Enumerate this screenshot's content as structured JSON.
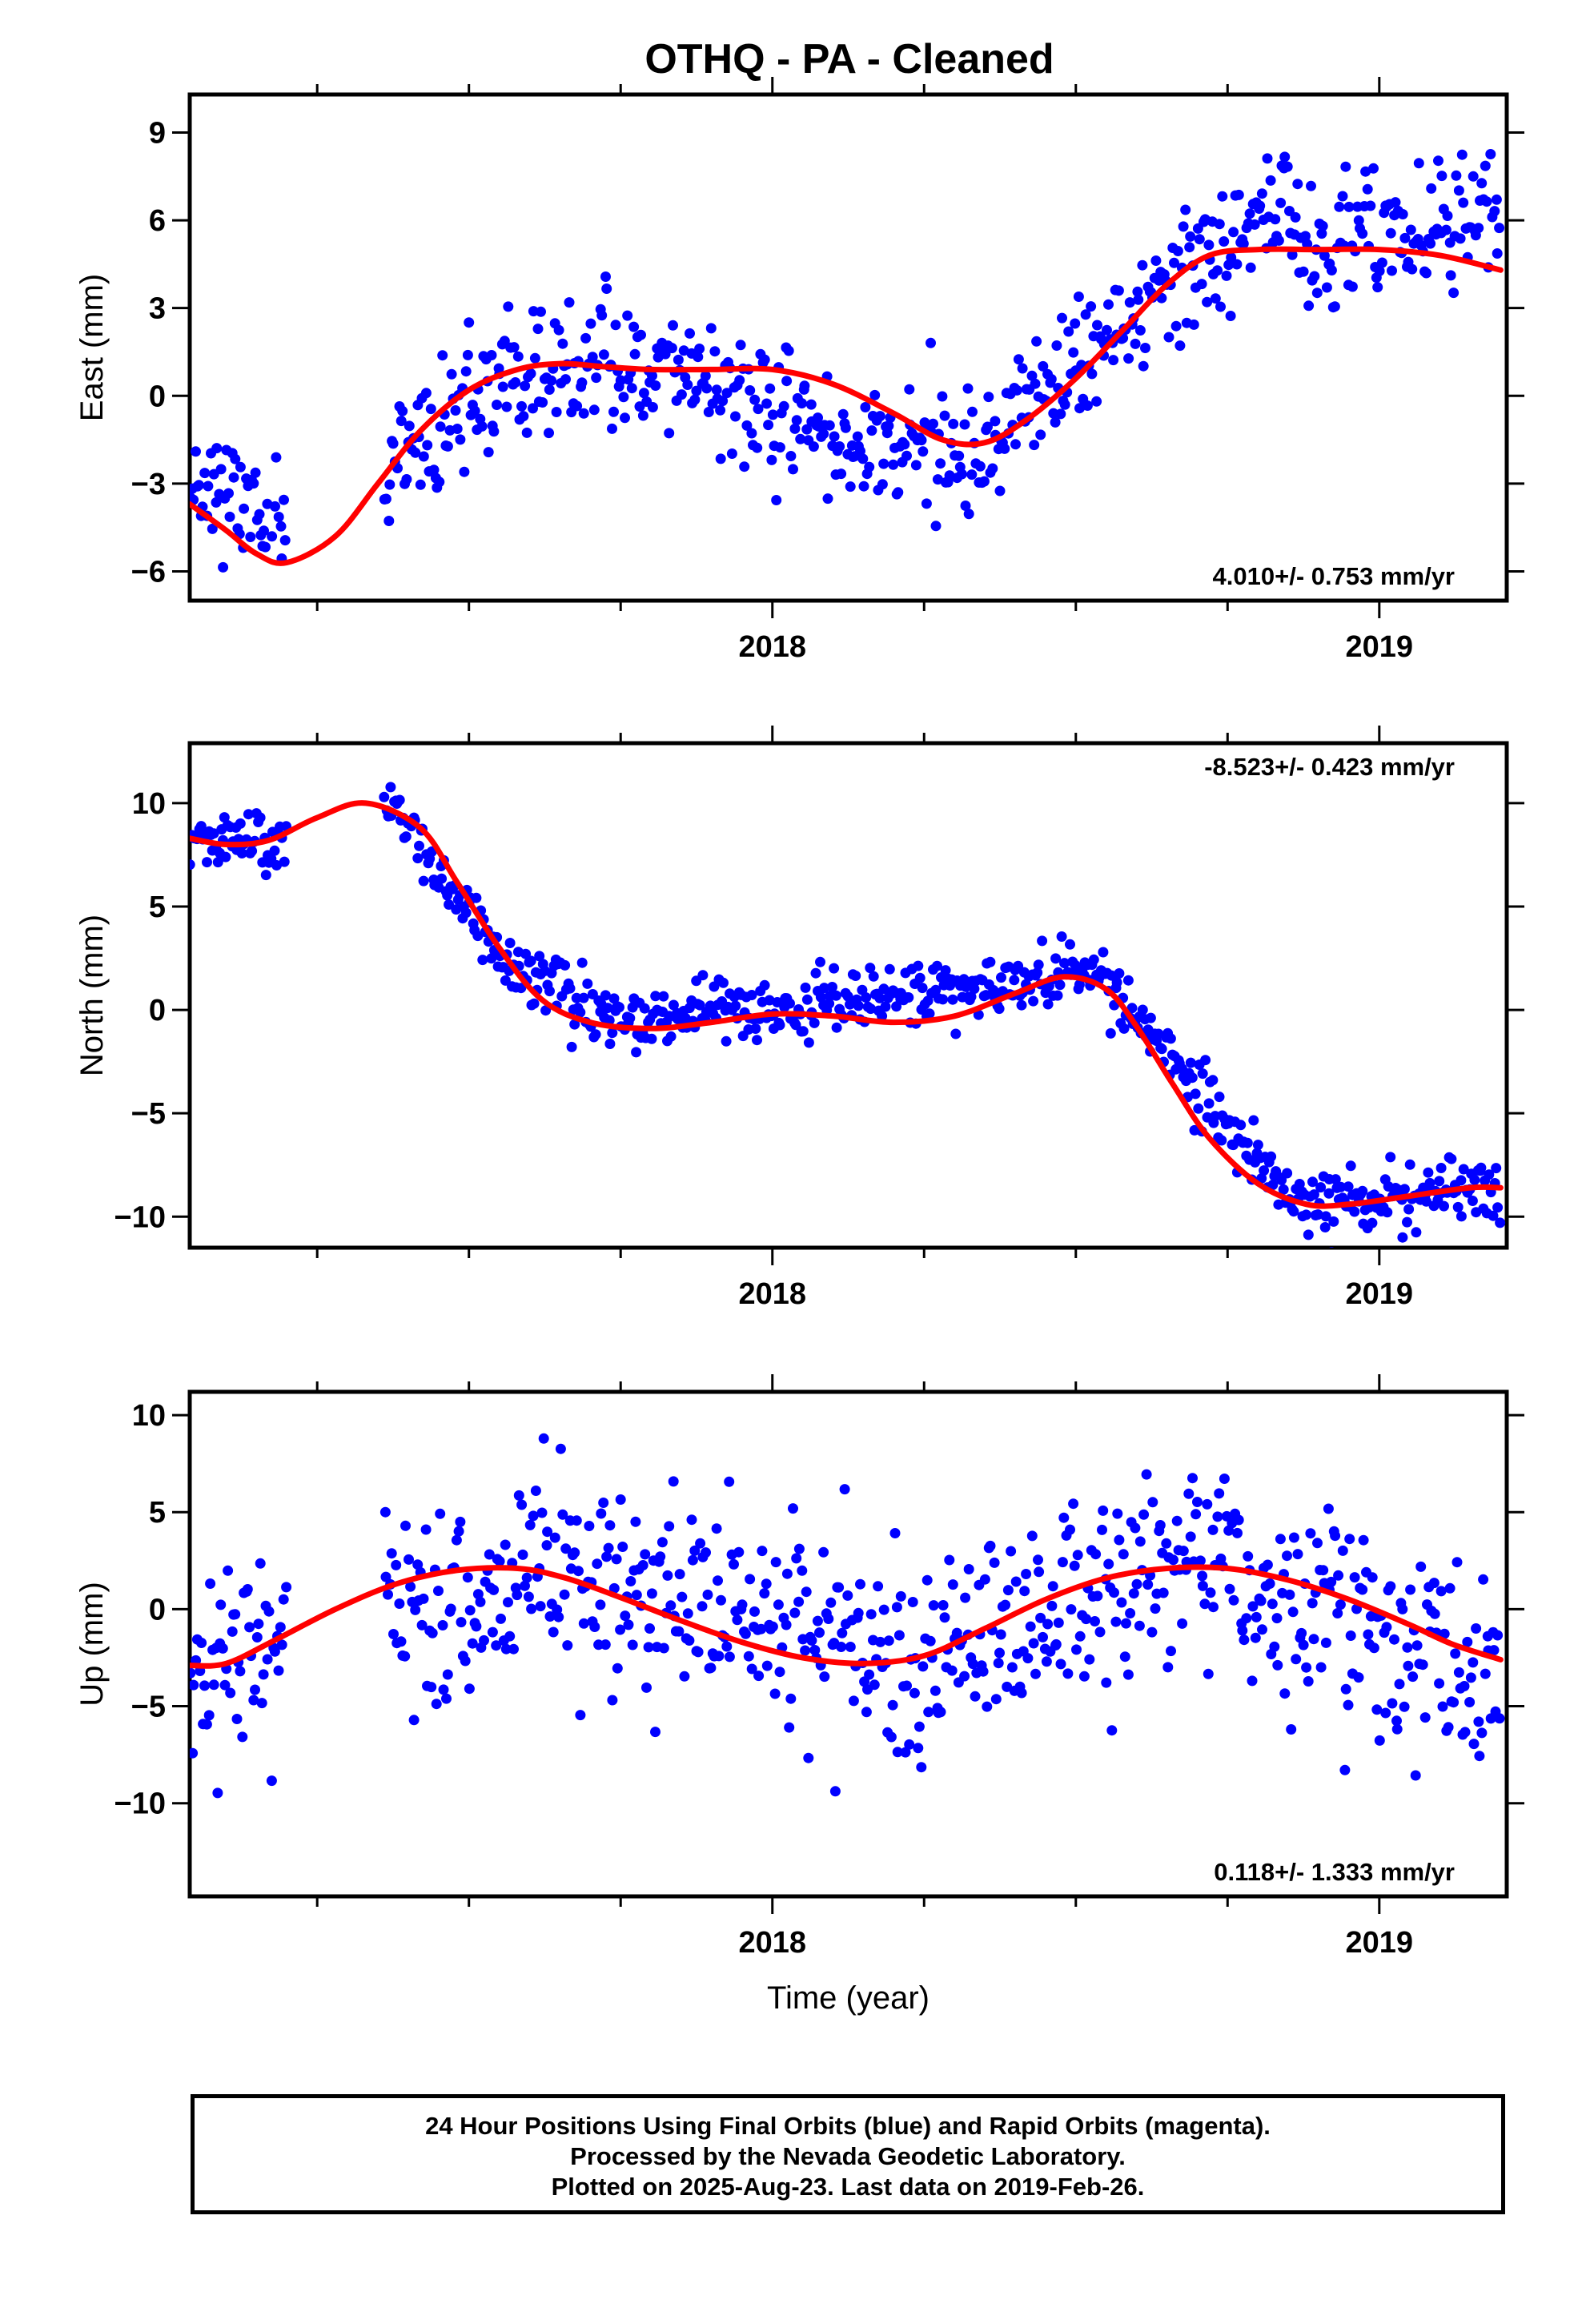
{
  "title": "OTHQ  - PA - Cleaned",
  "footer": {
    "line1": "24 Hour Positions Using Final Orbits (blue) and Rapid Orbits (magenta).",
    "line2": "Processed by the Nevada Geodetic Laboratory.",
    "line3": "Plotted on 2025-Aug-23. Last data on 2019-Feb-26."
  },
  "colors": {
    "points": "#0000ff",
    "fit": "#ff0000",
    "axes": "#000000"
  },
  "chart_data": [
    {
      "type": "scatter",
      "ylabel": "East (mm)",
      "xlabel": "",
      "rate_label": "4.010+/- 0.753 mm/yr",
      "rate_position": "bottom-right",
      "xlim": [
        2017.04,
        2019.21
      ],
      "ylim": [
        -7.0,
        10.3
      ],
      "x_ticks": [
        2018,
        2019
      ],
      "x_tick_labels": [
        "2018",
        "2019"
      ],
      "y_ticks": [
        -6,
        -3,
        0,
        3,
        6,
        9
      ],
      "y_tick_labels": [
        "−6",
        "−3",
        "0",
        "3",
        "6",
        "9"
      ],
      "fit_curve": {
        "x": [
          2017.04,
          2017.1,
          2017.15,
          2017.2,
          2017.28,
          2017.35,
          2017.42,
          2017.5,
          2017.58,
          2017.65,
          2017.72,
          2017.8,
          2017.9,
          2018.0,
          2018.1,
          2018.2,
          2018.28,
          2018.35,
          2018.42,
          2018.5,
          2018.58,
          2018.65,
          2018.72,
          2018.8,
          2018.9,
          2019.0,
          2019.1,
          2019.2
        ],
        "y": [
          -3.7,
          -4.6,
          -5.4,
          -5.7,
          -4.8,
          -3.0,
          -1.2,
          0.2,
          0.9,
          1.1,
          1.0,
          0.9,
          0.9,
          0.9,
          0.4,
          -0.6,
          -1.5,
          -1.6,
          -0.8,
          0.6,
          2.3,
          3.8,
          4.8,
          5.0,
          5.0,
          5.0,
          4.8,
          4.3
        ]
      },
      "trend_segments": [
        {
          "x0": 2017.04,
          "x1": 2017.2,
          "y0": -2.5,
          "y1": -4.8
        },
        {
          "x0": 2017.36,
          "x1": 2017.55,
          "y0": -2.8,
          "y1": 0.4
        },
        {
          "x0": 2017.55,
          "x1": 2017.85,
          "y0": 0.3,
          "y1": 1.3
        },
        {
          "x0": 2017.85,
          "x1": 2018.0,
          "y0": 0.8,
          "y1": -0.6
        },
        {
          "x0": 2018.0,
          "x1": 2018.35,
          "y0": -0.8,
          "y1": -2.4
        },
        {
          "x0": 2018.35,
          "x1": 2018.62,
          "y0": -1.6,
          "y1": 2.8
        },
        {
          "x0": 2018.62,
          "x1": 2018.85,
          "y0": 3.4,
          "y1": 7.0
        },
        {
          "x0": 2018.85,
          "x1": 2019.2,
          "y0": 5.0,
          "y1": 6.4
        }
      ],
      "scatter_sd": 1.1,
      "gaps": [
        [
          2017.21,
          2017.35
        ]
      ],
      "seed": 11
    },
    {
      "type": "scatter",
      "ylabel": "North (mm)",
      "xlabel": "",
      "rate_label": "-8.523+/- 0.423 mm/yr",
      "rate_position": "top-right",
      "xlim": [
        2017.04,
        2019.21
      ],
      "ylim": [
        -11.5,
        12.9
      ],
      "x_ticks": [
        2018,
        2019
      ],
      "x_tick_labels": [
        "2018",
        "2019"
      ],
      "y_ticks": [
        -10,
        -5,
        0,
        5,
        10
      ],
      "y_tick_labels": [
        "−10",
        "−5",
        "0",
        "5",
        "10"
      ],
      "fit_curve": {
        "x": [
          2017.04,
          2017.1,
          2017.17,
          2017.25,
          2017.33,
          2017.42,
          2017.48,
          2017.55,
          2017.62,
          2017.7,
          2017.8,
          2017.9,
          2018.0,
          2018.1,
          2018.2,
          2018.3,
          2018.4,
          2018.48,
          2018.55,
          2018.6,
          2018.66,
          2018.72,
          2018.8,
          2018.88,
          2018.95,
          2019.05,
          2019.15,
          2019.2
        ],
        "y": [
          8.3,
          8.0,
          8.2,
          9.3,
          10.0,
          8.8,
          6.2,
          3.0,
          0.5,
          -0.6,
          -0.9,
          -0.6,
          -0.2,
          -0.3,
          -0.6,
          -0.3,
          0.8,
          1.6,
          1.0,
          -0.8,
          -3.6,
          -6.2,
          -8.4,
          -9.4,
          -9.4,
          -9.0,
          -8.6,
          -8.6
        ]
      },
      "trend_segments": [
        {
          "x0": 2017.04,
          "x1": 2017.2,
          "y0": 8.2,
          "y1": 8.2
        },
        {
          "x0": 2017.36,
          "x1": 2017.55,
          "y0": 10.0,
          "y1": 3.0
        },
        {
          "x0": 2017.55,
          "x1": 2017.75,
          "y0": 2.5,
          "y1": -1.0
        },
        {
          "x0": 2017.75,
          "x1": 2018.55,
          "y0": -0.8,
          "y1": 1.8
        },
        {
          "x0": 2018.55,
          "x1": 2018.85,
          "y0": 1.2,
          "y1": -9.0
        },
        {
          "x0": 2018.85,
          "x1": 2019.2,
          "y0": -9.4,
          "y1": -8.8
        }
      ],
      "scatter_sd": 0.75,
      "gaps": [
        [
          2017.21,
          2017.35
        ]
      ],
      "seed": 23
    },
    {
      "type": "scatter",
      "ylabel": "Up (mm)",
      "xlabel": "Time (year)",
      "rate_label": "0.118+/- 1.333 mm/yr",
      "rate_position": "bottom-right",
      "xlim": [
        2017.04,
        2019.21
      ],
      "ylim": [
        -14.8,
        11.2
      ],
      "x_ticks": [
        2018,
        2019
      ],
      "x_tick_labels": [
        "2018",
        "2019"
      ],
      "y_ticks": [
        -10,
        -5,
        0,
        5,
        10
      ],
      "y_tick_labels": [
        "−10",
        "−5",
        "0",
        "5",
        "10"
      ],
      "fit_curve": {
        "x": [
          2017.04,
          2017.1,
          2017.18,
          2017.28,
          2017.38,
          2017.48,
          2017.58,
          2017.66,
          2017.75,
          2017.85,
          2017.95,
          2018.05,
          2018.15,
          2018.25,
          2018.35,
          2018.45,
          2018.55,
          2018.65,
          2018.75,
          2018.85,
          2018.95,
          2019.05,
          2019.12,
          2019.2
        ],
        "y": [
          -2.9,
          -2.8,
          -1.6,
          0.0,
          1.3,
          2.0,
          2.1,
          1.6,
          0.6,
          -0.6,
          -1.7,
          -2.5,
          -2.8,
          -2.4,
          -1.0,
          0.5,
          1.6,
          2.1,
          2.1,
          1.5,
          0.5,
          -0.8,
          -1.8,
          -2.6
        ]
      },
      "trend_segments": [
        {
          "x0": 2017.04,
          "x1": 2017.2,
          "y0": -3.5,
          "y1": -1.5
        },
        {
          "x0": 2017.36,
          "x1": 2017.7,
          "y0": 0.5,
          "y1": 1.8
        },
        {
          "x0": 2017.7,
          "x1": 2018.25,
          "y0": 1.5,
          "y1": -2.8
        },
        {
          "x0": 2018.25,
          "x1": 2018.7,
          "y0": -2.5,
          "y1": 3.0
        },
        {
          "x0": 2018.7,
          "x1": 2019.2,
          "y0": 2.0,
          "y1": -3.5
        }
      ],
      "scatter_sd": 2.6,
      "gaps": [
        [
          2017.21,
          2017.35
        ]
      ],
      "seed": 37
    }
  ]
}
